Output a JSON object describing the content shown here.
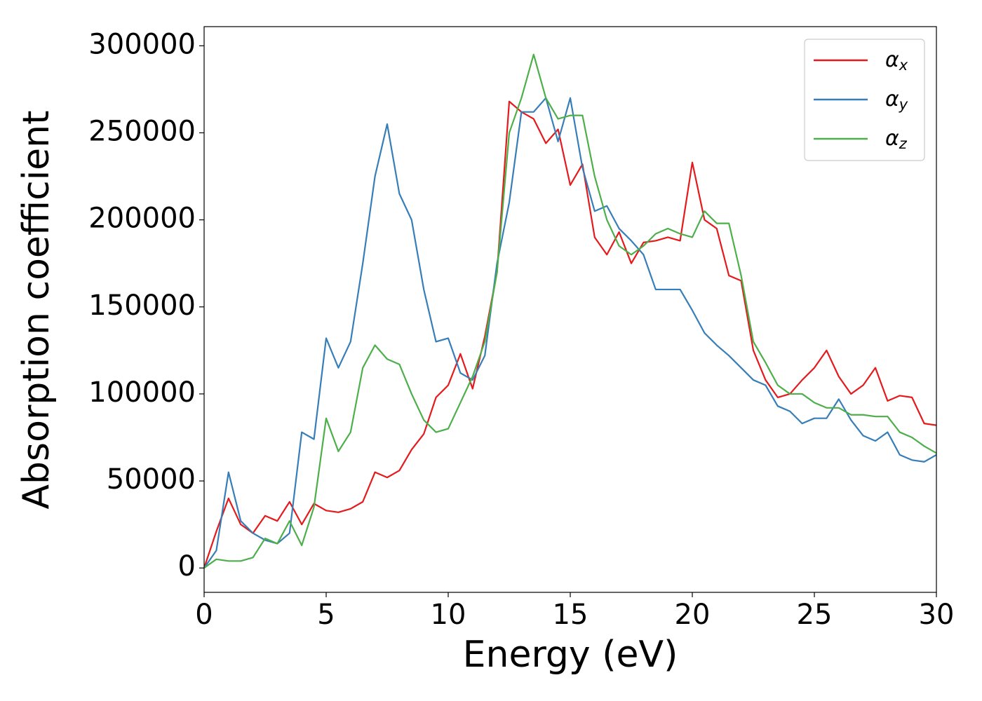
{
  "chart_data": {
    "type": "line",
    "xlabel": "Energy (eV)",
    "ylabel": "Absorption coefficient",
    "x": [
      0,
      0.5,
      1,
      1.5,
      2,
      2.5,
      3,
      3.5,
      4,
      4.5,
      5,
      5.5,
      6,
      6.5,
      7,
      7.5,
      8,
      8.5,
      9,
      9.5,
      10,
      10.5,
      11,
      11.5,
      12,
      12.5,
      13,
      13.5,
      14,
      14.5,
      15,
      15.5,
      16,
      16.5,
      17,
      17.5,
      18,
      18.5,
      19,
      19.5,
      20,
      20.5,
      21,
      21.5,
      22,
      22.5,
      23,
      23.5,
      24,
      24.5,
      25,
      25.5,
      26,
      26.5,
      27,
      27.5,
      28,
      28.5,
      29,
      29.5,
      30
    ],
    "series": [
      {
        "name": "αx",
        "color": "#e41a1c",
        "values": [
          0,
          21000,
          40000,
          25000,
          20000,
          30000,
          27000,
          38000,
          25000,
          37000,
          33000,
          32000,
          34000,
          38000,
          55000,
          52000,
          56000,
          68000,
          77000,
          98000,
          105000,
          123000,
          103000,
          133000,
          170000,
          268000,
          262000,
          258000,
          244000,
          252000,
          220000,
          232000,
          190000,
          180000,
          193000,
          175000,
          187000,
          188000,
          190000,
          188000,
          233000,
          200000,
          195000,
          168000,
          165000,
          125000,
          108000,
          98000,
          100000,
          108000,
          115000,
          125000,
          110000,
          100000,
          105000,
          115000,
          96000,
          99000,
          98000,
          83000,
          82000
        ]
      },
      {
        "name": "αy",
        "color": "#377eb8",
        "values": [
          0,
          10000,
          55000,
          27000,
          20000,
          16000,
          14000,
          20000,
          78000,
          74000,
          132000,
          115000,
          130000,
          175000,
          225000,
          255000,
          215000,
          200000,
          160000,
          130000,
          132000,
          112000,
          108000,
          122000,
          175000,
          210000,
          262000,
          262000,
          270000,
          245000,
          270000,
          230000,
          205000,
          208000,
          195000,
          188000,
          180000,
          160000,
          160000,
          160000,
          148000,
          135000,
          128000,
          122000,
          115000,
          108000,
          105000,
          93000,
          90000,
          83000,
          86000,
          86000,
          97000,
          85000,
          76000,
          73000,
          78000,
          65000,
          62000,
          61000,
          65000
        ]
      },
      {
        "name": "αz",
        "color": "#4daf4a",
        "values": [
          0,
          5000,
          4000,
          4000,
          6000,
          17000,
          14000,
          27000,
          13000,
          35000,
          86000,
          67000,
          78000,
          115000,
          128000,
          120000,
          117000,
          100000,
          85000,
          78000,
          80000,
          95000,
          110000,
          130000,
          170000,
          250000,
          270000,
          295000,
          270000,
          258000,
          260000,
          260000,
          225000,
          200000,
          185000,
          180000,
          185000,
          192000,
          195000,
          192000,
          190000,
          205000,
          198000,
          198000,
          168000,
          130000,
          118000,
          105000,
          100000,
          100000,
          95000,
          92000,
          92000,
          88000,
          88000,
          87000,
          87000,
          78000,
          75000,
          70000,
          66000
        ]
      }
    ],
    "xlim": [
      0,
      30
    ],
    "xticks": [
      0,
      5,
      10,
      15,
      20,
      25,
      30
    ],
    "ylim": [
      -14000,
      311000
    ],
    "yticks": [
      0,
      50000,
      100000,
      150000,
      200000,
      250000,
      300000
    ],
    "grid": false,
    "legend": "upper right"
  }
}
